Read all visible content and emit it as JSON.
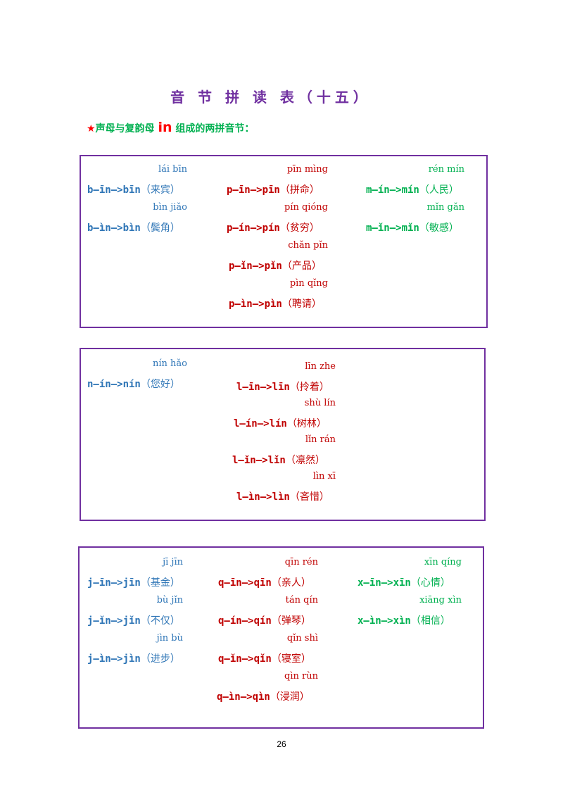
{
  "title": "音 节 拼 读 表（十五）",
  "subtitle": {
    "star": "★",
    "prefix": "声母与复韵母",
    "final": "in",
    "suffix": "组成的两拼音节："
  },
  "sections": [
    {
      "columns": [
        {
          "color": "blue",
          "items": [
            {
              "pinyin": "lái bīn",
              "syllable": "b—īn—>bīn",
              "word": "（来宾）"
            },
            {
              "pinyin": "bìn jiǎo",
              "syllable": "b—ìn—>bìn",
              "word": "（鬓角）"
            }
          ]
        },
        {
          "color": "red",
          "items": [
            {
              "pinyin": "pīn mìng",
              "syllable": "p—īn—>pīn",
              "word": "（拼命）"
            },
            {
              "pinyin": "pín qióng",
              "syllable": "p—ín—>pín",
              "word": "（贫穷）"
            },
            {
              "pinyin": "chǎn pǐn",
              "syllable": "p—ǐn—>pǐn",
              "word": "（产品）"
            },
            {
              "pinyin": "pìn qǐng",
              "syllable": "p—ìn—>pìn",
              "word": "（聘请）"
            }
          ]
        },
        {
          "color": "green",
          "items": [
            {
              "pinyin": "rén mín",
              "syllable": "m—ín—>mín",
              "word": "（人民）"
            },
            {
              "pinyin": "mǐn gǎn",
              "syllable": "m—ǐn—>mǐn",
              "word": "（敏感）"
            }
          ]
        }
      ]
    },
    {
      "columns": [
        {
          "color": "blue",
          "items": [
            {
              "pinyin": "nín hǎo",
              "syllable": "n—ín—>nín",
              "word": "（您好）"
            }
          ]
        },
        {
          "color": "red",
          "items": [
            {
              "pinyin": "līn zhe",
              "syllable": "l—īn—>līn",
              "word": "（拎着）"
            },
            {
              "pinyin": "shù lín",
              "syllable": "l—ín—>lín",
              "word": "（树林）"
            },
            {
              "pinyin": "lǐn rán",
              "syllable": "l—ǐn—>lǐn",
              "word": "（凛然）"
            },
            {
              "pinyin": "lìn xī",
              "syllable": "l—ìn—>lìn",
              "word": "（吝惜）"
            }
          ]
        }
      ]
    },
    {
      "columns": [
        {
          "color": "blue",
          "items": [
            {
              "pinyin": "jī jīn",
              "syllable": "j—īn—>jīn",
              "word": "（基金）"
            },
            {
              "pinyin": "bù jǐn",
              "syllable": "j—ǐn—>jǐn",
              "word": "（不仅）"
            },
            {
              "pinyin": "jìn bù",
              "syllable": "j—ìn—>jìn",
              "word": "（进步）"
            }
          ]
        },
        {
          "color": "red",
          "items": [
            {
              "pinyin": "qīn rén",
              "syllable": "q—īn—>qīn",
              "word": "（亲人）"
            },
            {
              "pinyin": "tán qín",
              "syllable": "q—ín—>qín",
              "word": "（弹琴）"
            },
            {
              "pinyin": "qǐn shì",
              "syllable": "q—ǐn—>qǐn",
              "word": "（寝室）"
            },
            {
              "pinyin": "qìn rùn",
              "syllable": "q—ìn—>qìn",
              "word": "（浸润）"
            }
          ]
        },
        {
          "color": "green",
          "items": [
            {
              "pinyin": "xīn qíng",
              "syllable": "x—īn—>xīn",
              "word": "（心情）"
            },
            {
              "pinyin": "xiāng xìn",
              "syllable": "x—ìn—>xìn",
              "word": "（相信）"
            }
          ]
        }
      ]
    }
  ],
  "page_number": "26"
}
